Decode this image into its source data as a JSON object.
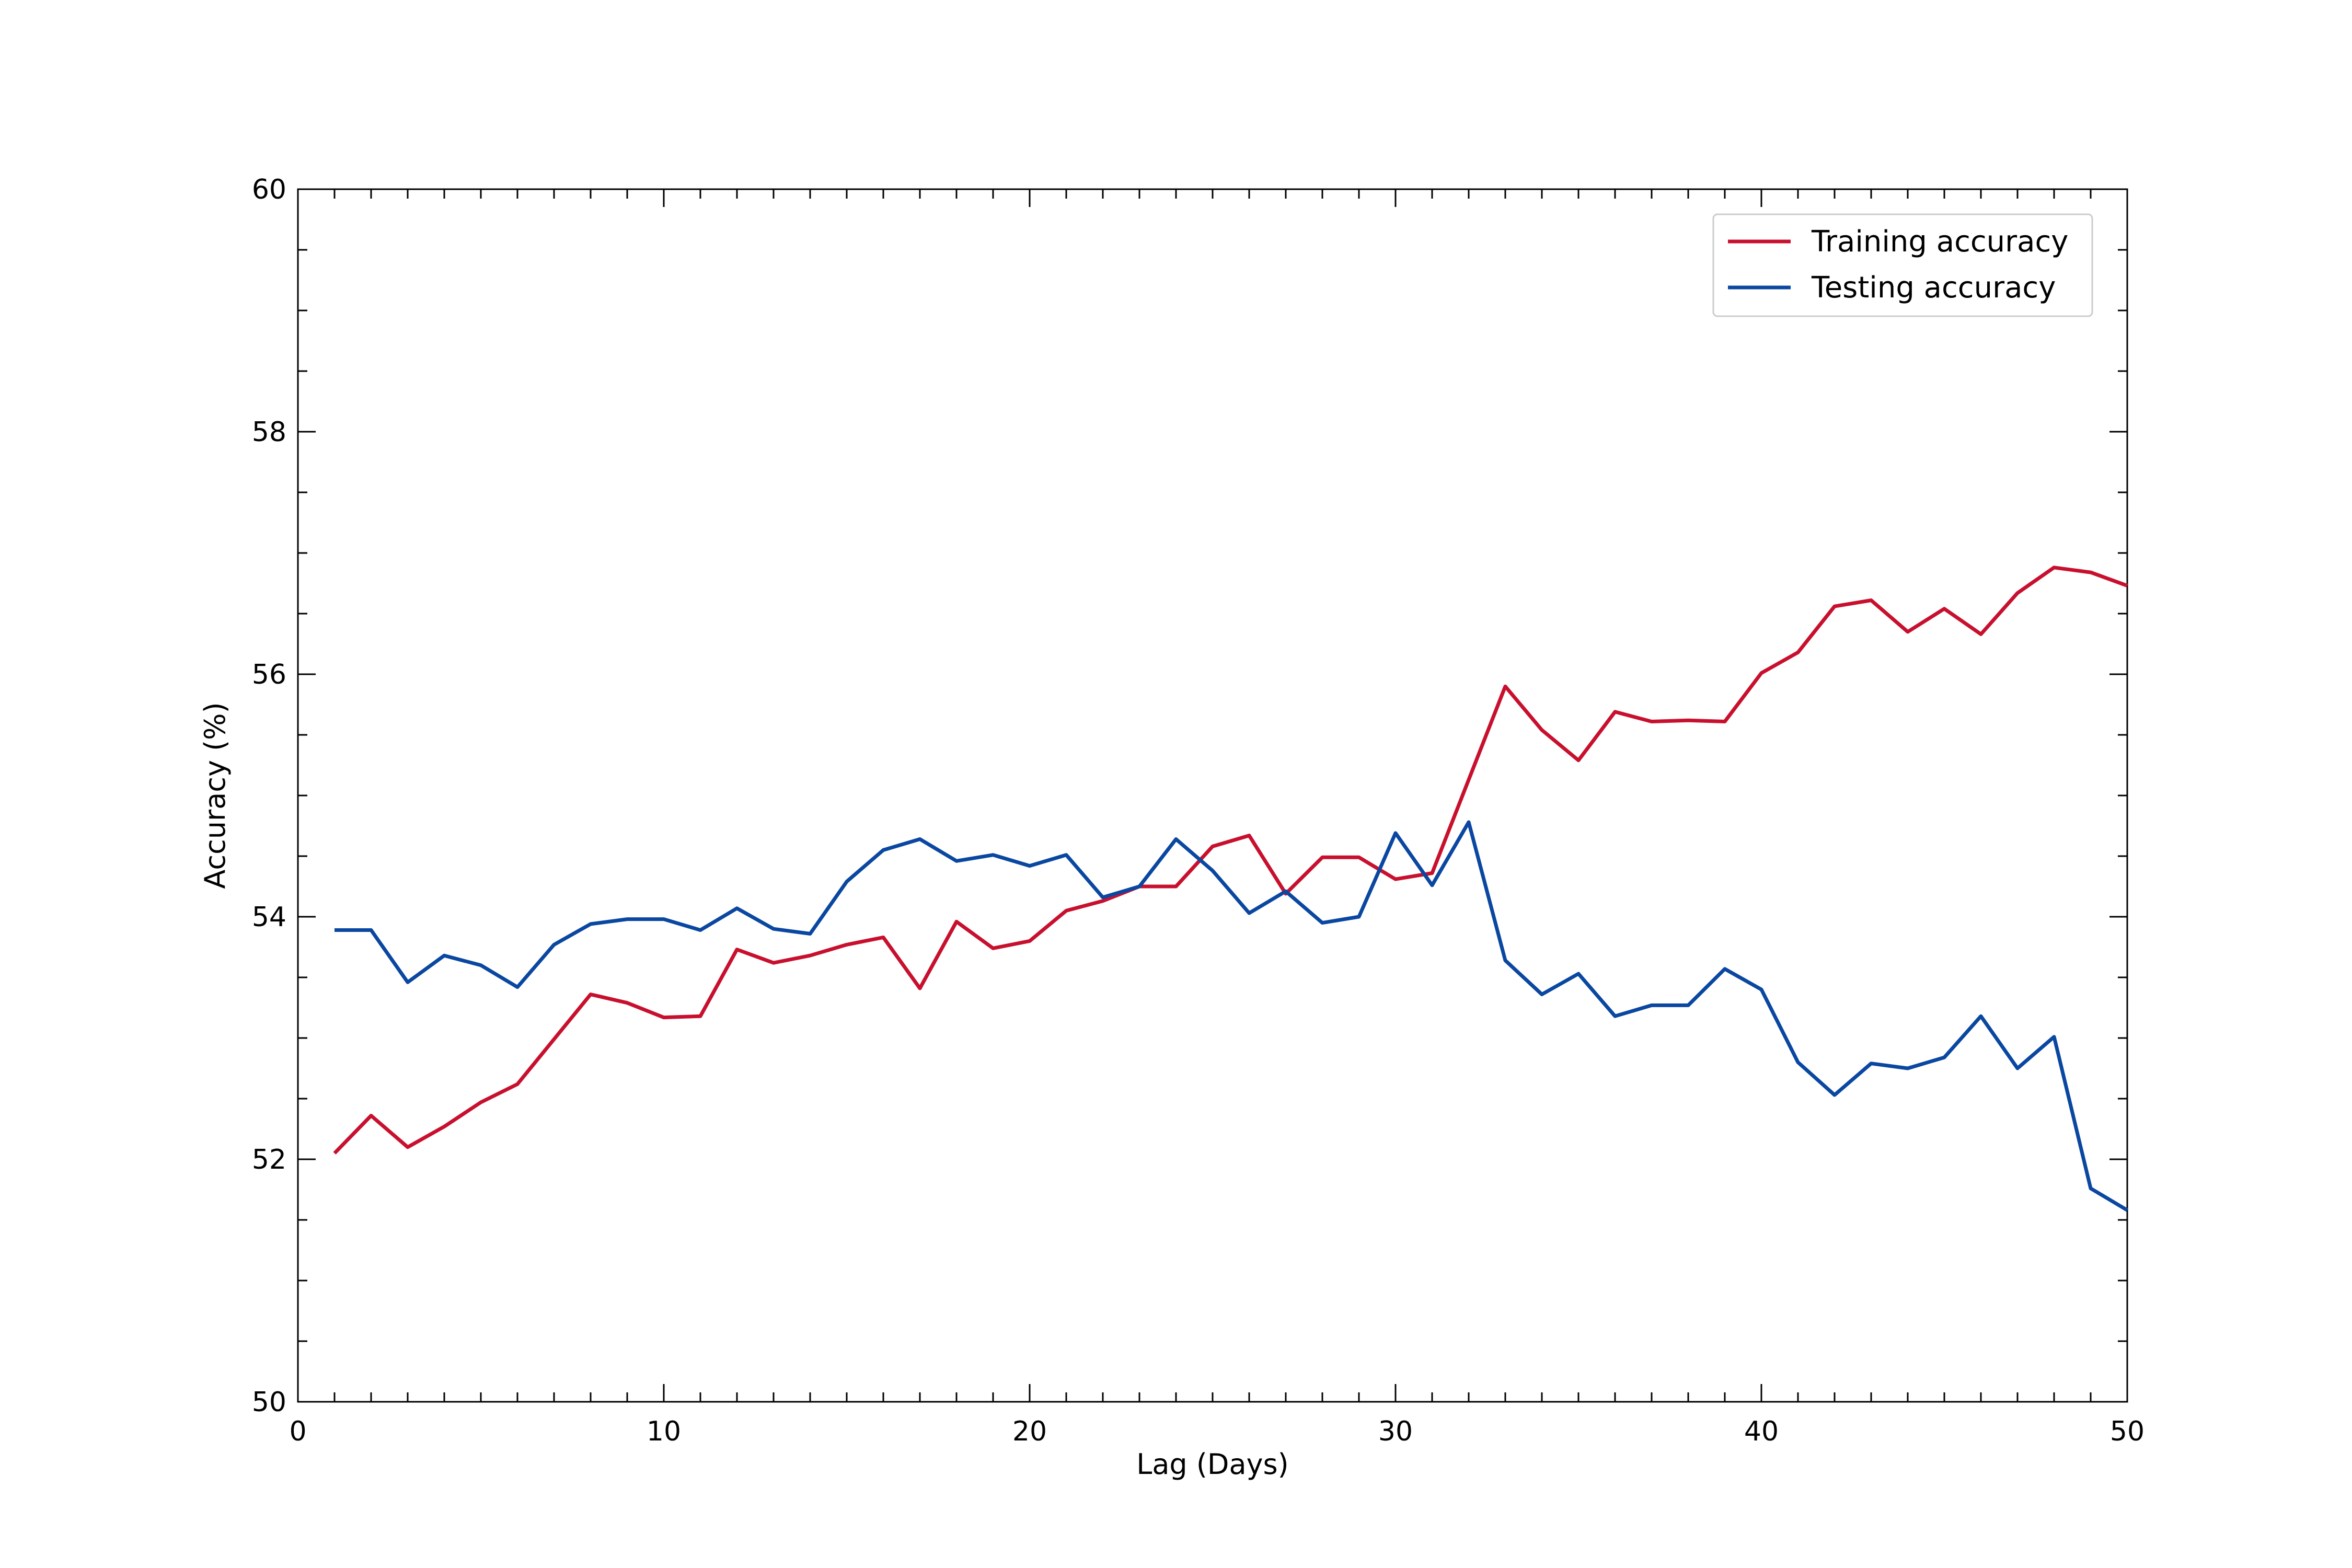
{
  "chart_data": {
    "type": "line",
    "title": "",
    "xlabel": "Lag (Days)",
    "ylabel": "Accuracy (%)",
    "xlim": [
      0,
      50
    ],
    "ylim": [
      50,
      60
    ],
    "x_major_ticks": [
      0,
      10,
      20,
      30,
      40,
      50
    ],
    "x_minor_step": 1,
    "y_major_ticks": [
      50,
      52,
      54,
      56,
      58,
      60
    ],
    "y_minor_step": 0.5,
    "tick_direction": "in",
    "grid": false,
    "legend_position": "top-right",
    "x": [
      1,
      2,
      3,
      4,
      5,
      6,
      7,
      8,
      9,
      10,
      11,
      12,
      13,
      14,
      15,
      16,
      17,
      18,
      19,
      20,
      21,
      22,
      23,
      24,
      25,
      26,
      27,
      28,
      29,
      30,
      31,
      32,
      33,
      34,
      35,
      36,
      37,
      38,
      39,
      40,
      41,
      42,
      43,
      44,
      45,
      46,
      47,
      48,
      49,
      50
    ],
    "series": [
      {
        "name": "Training accuracy",
        "color": "#c8102e",
        "values": [
          52.05,
          52.36,
          52.1,
          52.27,
          52.47,
          52.62,
          52.99,
          53.36,
          53.29,
          53.17,
          53.18,
          53.73,
          53.62,
          53.68,
          53.77,
          53.83,
          53.41,
          53.96,
          53.74,
          53.8,
          54.05,
          54.13,
          54.25,
          54.25,
          54.58,
          54.67,
          54.19,
          54.49,
          54.49,
          54.31,
          54.36,
          55.13,
          55.9,
          55.54,
          55.29,
          55.69,
          55.61,
          55.62,
          55.61,
          56.01,
          56.18,
          56.56,
          56.61,
          56.35,
          56.54,
          56.33,
          56.67,
          56.88,
          56.84,
          56.73
        ]
      },
      {
        "name": "Testing accuracy",
        "color": "#0a47a1",
        "values": [
          53.89,
          53.89,
          53.46,
          53.68,
          53.6,
          53.42,
          53.77,
          53.94,
          53.98,
          53.98,
          53.89,
          54.07,
          53.9,
          53.86,
          54.29,
          54.55,
          54.64,
          54.46,
          54.51,
          54.42,
          54.51,
          54.16,
          54.25,
          54.64,
          54.38,
          54.03,
          54.21,
          53.95,
          54.0,
          54.69,
          54.26,
          54.78,
          53.64,
          53.36,
          53.53,
          53.18,
          53.27,
          53.27,
          53.57,
          53.4,
          52.8,
          52.53,
          52.79,
          52.75,
          52.84,
          53.18,
          52.75,
          53.01,
          51.76,
          51.58
        ]
      }
    ]
  }
}
